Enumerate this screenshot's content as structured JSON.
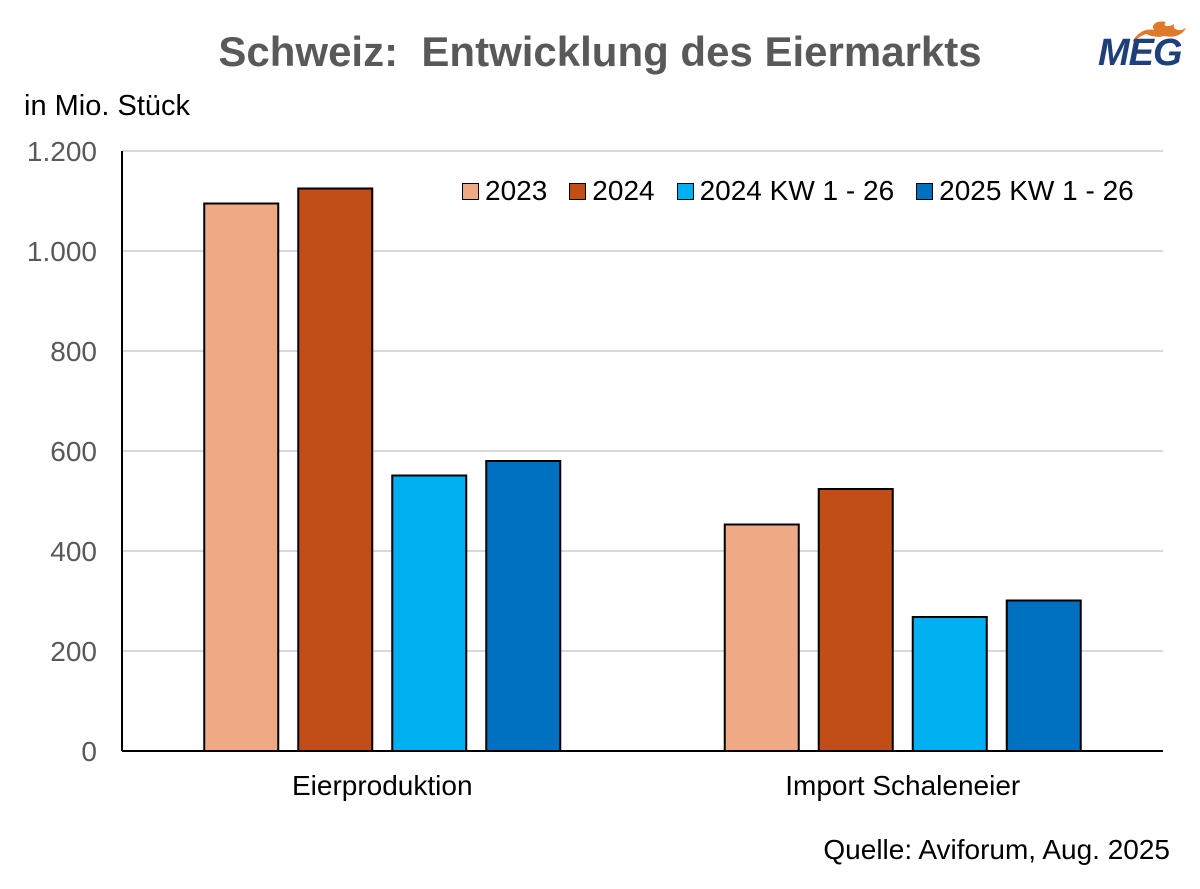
{
  "title": "Schweiz:  Entwicklung des Eiermarkts",
  "logo": {
    "text": "MEG",
    "colors": {
      "text": "#1f3f7a",
      "flame": "#e07a2a"
    }
  },
  "unit_label": "in Mio. Stück",
  "source": "Quelle: Aviforum, Aug. 2025",
  "colors": {
    "grid": "#d9d9d9",
    "axis": "#000000",
    "tick_text": "#595959"
  },
  "chart_data": {
    "type": "bar",
    "categories": [
      "Eierproduktion",
      "Import Schaleneier"
    ],
    "series": [
      {
        "name": "2023",
        "color": "#f0a985",
        "values": [
          1095,
          453
        ]
      },
      {
        "name": "2024",
        "color": "#c04e16",
        "values": [
          1125,
          524
        ]
      },
      {
        "name": "2024 KW 1 - 26",
        "color": "#00b0f0",
        "values": [
          551,
          268
        ]
      },
      {
        "name": "2025 KW 1 - 26",
        "color": "#0070c0",
        "values": [
          580,
          301
        ]
      }
    ],
    "ylim": [
      0,
      1200
    ],
    "yticks": [
      0,
      200,
      400,
      600,
      800,
      1000,
      1200
    ],
    "ytick_labels": [
      "0",
      "200",
      "400",
      "600",
      "800",
      "1.000",
      "1.200"
    ],
    "grid": true,
    "legend_position": "top-right"
  }
}
